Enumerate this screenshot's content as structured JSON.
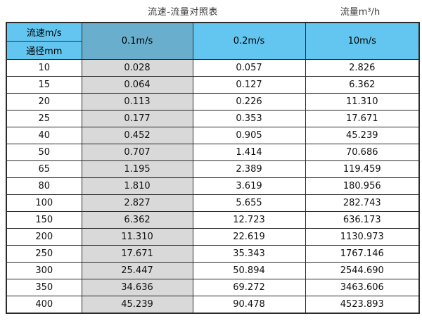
{
  "colors": {
    "header_blue": "#63c6f0",
    "header_blue_dark": "#69afcd",
    "column_gray": "#d9d9d9",
    "border": "#2b2b2b"
  },
  "chart_data": {
    "type": "table",
    "title": "流速-流量对照表",
    "unit_note": "流量m³/h",
    "corner": {
      "top": "流速m/s",
      "bottom": "通径mm"
    },
    "velocity_columns": [
      "0.1m/s",
      "0.2m/s",
      "10m/s"
    ],
    "rows": [
      {
        "diameter": "10",
        "values": [
          "0.028",
          "0.057",
          "2.826"
        ]
      },
      {
        "diameter": "15",
        "values": [
          "0.064",
          "0.127",
          "6.362"
        ]
      },
      {
        "diameter": "20",
        "values": [
          "0.113",
          "0.226",
          "11.310"
        ]
      },
      {
        "diameter": "25",
        "values": [
          "0.177",
          "0.353",
          "17.671"
        ]
      },
      {
        "diameter": "40",
        "values": [
          "0.452",
          "0.905",
          "45.239"
        ]
      },
      {
        "diameter": "50",
        "values": [
          "0.707",
          "1.414",
          "70.686"
        ]
      },
      {
        "diameter": "65",
        "values": [
          "1.195",
          "2.389",
          "119.459"
        ]
      },
      {
        "diameter": "80",
        "values": [
          "1.810",
          "3.619",
          "180.956"
        ]
      },
      {
        "diameter": "100",
        "values": [
          "2.827",
          "5.655",
          "282.743"
        ]
      },
      {
        "diameter": "150",
        "values": [
          "6.362",
          "12.723",
          "636.173"
        ]
      },
      {
        "diameter": "200",
        "values": [
          "11.310",
          "22.619",
          "1130.973"
        ]
      },
      {
        "diameter": "250",
        "values": [
          "17.671",
          "35.343",
          "1767.146"
        ]
      },
      {
        "diameter": "300",
        "values": [
          "25.447",
          "50.894",
          "2544.690"
        ]
      },
      {
        "diameter": "350",
        "values": [
          "34.636",
          "69.272",
          "3463.606"
        ]
      },
      {
        "diameter": "400",
        "values": [
          "45.239",
          "90.478",
          "4523.893"
        ]
      }
    ]
  }
}
